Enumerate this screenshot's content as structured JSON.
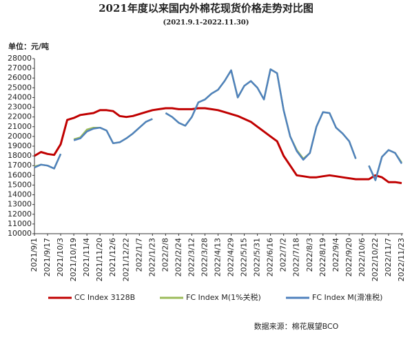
{
  "chart_data": {
    "type": "line",
    "title": "2021年度以来国内外棉花现货价格走势对比图",
    "subtitle": "(2021.9.1-2022.11.30)",
    "y_label": "单位：元/吨",
    "source": "数据来源：棉花展望BCO",
    "categories": [
      "2021/9/1",
      null,
      "2021/9/17",
      null,
      "2021/10/3",
      null,
      "2021/10/19",
      null,
      "2021/11/4",
      null,
      "2021/11/20",
      null,
      "2021/12/6",
      null,
      "2021/12/22",
      null,
      "2022/1/7",
      null,
      "2022/1/23",
      null,
      "2022/2/8",
      null,
      "2022/2/24",
      null,
      "2022/3/12",
      null,
      "2022/3/28",
      null,
      "2022/4/13",
      null,
      "2022/4/29",
      null,
      "2022/5/15",
      null,
      "2022/5/31",
      null,
      "2022/6/16",
      null,
      "2022/7/2",
      null,
      "2022/7/18",
      null,
      "2022/8/3",
      null,
      "2022/8/19",
      null,
      "2022/9/4",
      null,
      "2022/9/20",
      null,
      "2022/10/6",
      null,
      "2022/10/22",
      null,
      "2022/11/7",
      null,
      "2022/11/23"
    ],
    "series": [
      {
        "name": "CC Index 3128B",
        "color": "#c00000",
        "values": [
          18000,
          18400,
          18200,
          18100,
          19200,
          21700,
          21900,
          22200,
          22300,
          22400,
          22700,
          22700,
          22600,
          22100,
          22000,
          22100,
          22300,
          22500,
          22700,
          22800,
          22900,
          22900,
          22800,
          22800,
          22800,
          22900,
          22900,
          22800,
          22700,
          22500,
          22300,
          22100,
          21800,
          21500,
          21000,
          20500,
          20000,
          19500,
          18000,
          17000,
          16000,
          15900,
          15800,
          15800,
          15900,
          16000,
          15900,
          15800,
          15700,
          15600,
          15600,
          15600,
          16000,
          15800,
          15300,
          15300,
          15200
        ]
      },
      {
        "name": "FC Index M(1%关税)",
        "color": "#9bbb59",
        "values": [
          16900,
          17100,
          17000,
          16700,
          18200,
          null,
          19700,
          19900,
          20700,
          20900,
          20900,
          20600,
          19300,
          19400,
          19800,
          20300,
          20900,
          21500,
          21800,
          null,
          22400,
          22000,
          21400,
          21100,
          22000,
          23500,
          23800,
          24400,
          24800,
          25700,
          26800,
          24000,
          25200,
          25700,
          25000,
          23800,
          26900,
          26500,
          22700,
          20000,
          18600,
          17700,
          18300,
          21000,
          22500,
          22400,
          20900,
          20300,
          19500,
          17700,
          null,
          17000,
          15500,
          17900,
          18600,
          18300,
          17300
        ]
      },
      {
        "name": "FC Index M(滑准税)",
        "color": "#4f81bd",
        "values": [
          16800,
          17100,
          17000,
          16700,
          18200,
          null,
          19600,
          19800,
          20500,
          20800,
          20900,
          20600,
          19300,
          19400,
          19800,
          20300,
          20900,
          21500,
          21800,
          null,
          22400,
          22000,
          21400,
          21100,
          22000,
          23500,
          23800,
          24400,
          24800,
          25700,
          26800,
          24000,
          25200,
          25700,
          25000,
          23800,
          26900,
          26500,
          22700,
          20000,
          18500,
          17600,
          18300,
          21000,
          22500,
          22400,
          20900,
          20300,
          19500,
          17700,
          null,
          17000,
          15500,
          17900,
          18600,
          18300,
          17200
        ]
      }
    ],
    "ylim": [
      10000,
      28000
    ],
    "yticks": [
      10000,
      11000,
      12000,
      13000,
      14000,
      15000,
      16000,
      17000,
      18000,
      19000,
      20000,
      21000,
      22000,
      23000,
      24000,
      25000,
      26000,
      27000,
      28000
    ],
    "legend": "bottom"
  }
}
